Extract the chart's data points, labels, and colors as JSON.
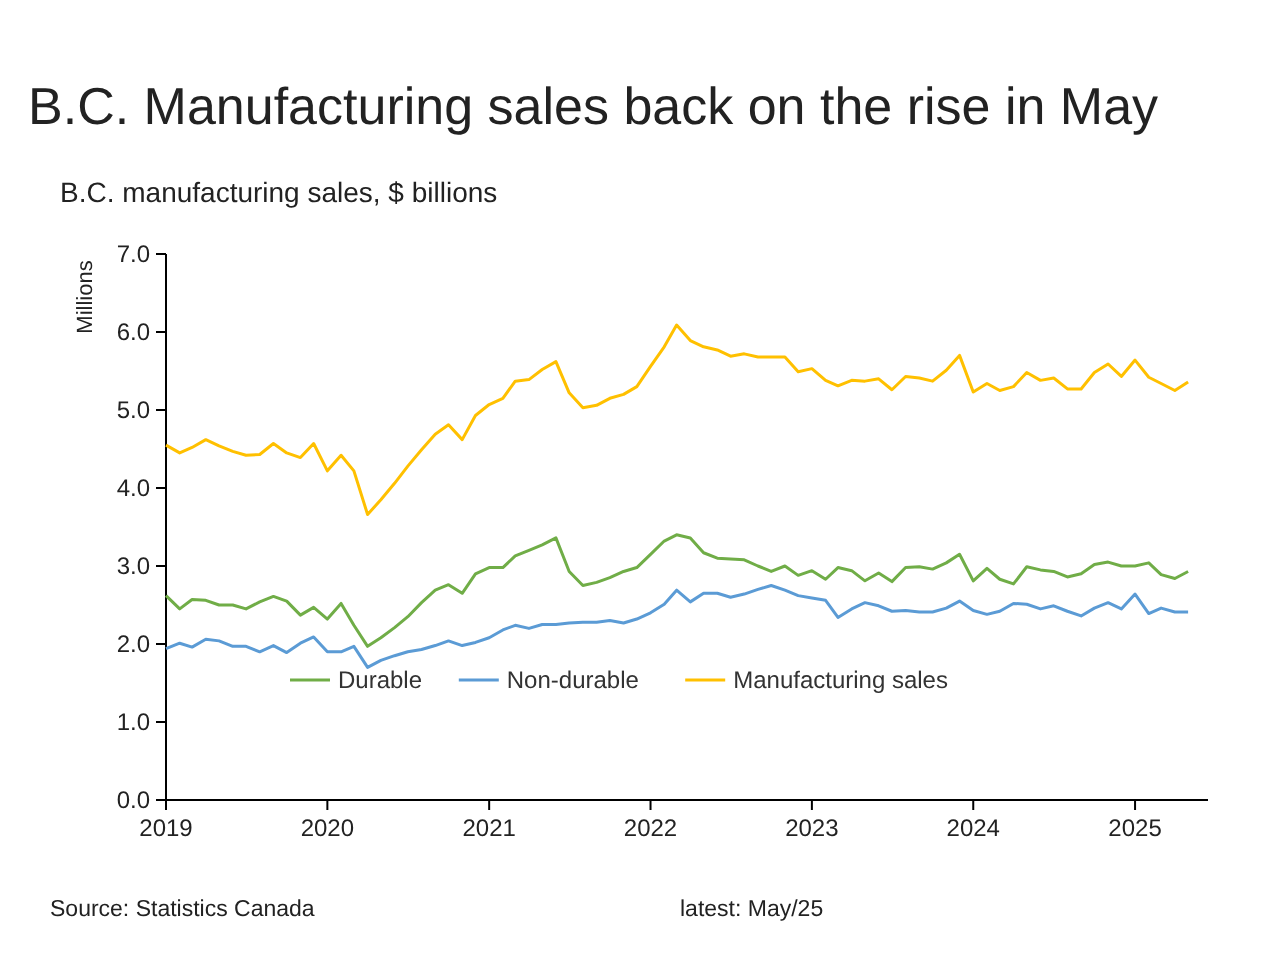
{
  "chart_data": {
    "type": "line",
    "title": "B.C. Manufacturing sales back on the rise in May",
    "subtitle": "B.C. manufacturing sales, $ billions",
    "ylabel": "Millions",
    "x": [
      "2019-01",
      "2019-02",
      "2019-03",
      "2019-04",
      "2019-05",
      "2019-06",
      "2019-07",
      "2019-08",
      "2019-09",
      "2019-10",
      "2019-11",
      "2019-12",
      "2020-01",
      "2020-02",
      "2020-03",
      "2020-04",
      "2020-05",
      "2020-06",
      "2020-07",
      "2020-08",
      "2020-09",
      "2020-10",
      "2020-11",
      "2020-12",
      "2021-01",
      "2021-02",
      "2021-03",
      "2021-04",
      "2021-05",
      "2021-06",
      "2021-07",
      "2021-08",
      "2021-09",
      "2021-10",
      "2021-11",
      "2021-12",
      "2022-01",
      "2022-02",
      "2022-03",
      "2022-04",
      "2022-05",
      "2022-06",
      "2022-07",
      "2022-08",
      "2022-09",
      "2022-10",
      "2022-11",
      "2022-12",
      "2023-01",
      "2023-02",
      "2023-03",
      "2023-04",
      "2023-05",
      "2023-06",
      "2023-07",
      "2023-08",
      "2023-09",
      "2023-10",
      "2023-11",
      "2023-12",
      "2024-01",
      "2024-02",
      "2024-03",
      "2024-04",
      "2024-05",
      "2024-06",
      "2024-07",
      "2024-08",
      "2024-09",
      "2024-10",
      "2024-11",
      "2024-12",
      "2025-01",
      "2025-02",
      "2025-03",
      "2025-04",
      "2025-05"
    ],
    "series": [
      {
        "name": "Durable",
        "color": "#70ad47",
        "values": [
          2.62,
          2.45,
          2.57,
          2.56,
          2.5,
          2.5,
          2.45,
          2.54,
          2.61,
          2.55,
          2.37,
          2.47,
          2.32,
          2.52,
          2.24,
          1.97,
          2.08,
          2.21,
          2.35,
          2.53,
          2.69,
          2.76,
          2.65,
          2.9,
          2.98,
          2.98,
          3.13,
          3.2,
          3.27,
          3.36,
          2.93,
          2.75,
          2.79,
          2.85,
          2.93,
          2.98,
          3.15,
          3.32,
          3.4,
          3.36,
          3.17,
          3.1,
          3.09,
          3.08,
          3.0,
          2.93,
          3.0,
          2.88,
          2.94,
          2.83,
          2.98,
          2.94,
          2.81,
          2.91,
          2.8,
          2.98,
          2.99,
          2.96,
          3.04,
          3.15,
          2.81,
          2.97,
          2.83,
          2.77,
          2.99,
          2.95,
          2.93,
          2.86,
          2.9,
          3.02,
          3.05,
          3.0,
          3.0,
          3.04,
          2.89,
          2.84,
          2.93
        ]
      },
      {
        "name": "Non-durable",
        "color": "#5b9bd5",
        "values": [
          1.94,
          2.01,
          1.96,
          2.06,
          2.04,
          1.97,
          1.97,
          1.9,
          1.98,
          1.89,
          2.01,
          2.09,
          1.9,
          1.9,
          1.97,
          1.7,
          1.79,
          1.85,
          1.9,
          1.93,
          1.98,
          2.04,
          1.98,
          2.02,
          2.08,
          2.18,
          2.24,
          2.2,
          2.25,
          2.25,
          2.27,
          2.28,
          2.28,
          2.3,
          2.27,
          2.32,
          2.4,
          2.51,
          2.69,
          2.54,
          2.65,
          2.65,
          2.6,
          2.64,
          2.7,
          2.75,
          2.69,
          2.62,
          2.59,
          2.56,
          2.34,
          2.45,
          2.53,
          2.49,
          2.42,
          2.43,
          2.41,
          2.41,
          2.46,
          2.55,
          2.43,
          2.38,
          2.42,
          2.52,
          2.51,
          2.45,
          2.49,
          2.42,
          2.36,
          2.46,
          2.53,
          2.45,
          2.64,
          2.39,
          2.46,
          2.41,
          2.41
        ]
      },
      {
        "name": "Manufacturing sales",
        "color": "#ffc000",
        "values": [
          4.55,
          4.45,
          4.52,
          4.62,
          4.54,
          4.47,
          4.42,
          4.43,
          4.57,
          4.45,
          4.39,
          4.57,
          4.22,
          4.42,
          4.22,
          3.66,
          3.85,
          4.06,
          4.28,
          4.49,
          4.69,
          4.81,
          4.62,
          4.93,
          5.07,
          5.15,
          5.37,
          5.39,
          5.52,
          5.62,
          5.22,
          5.03,
          5.06,
          5.15,
          5.2,
          5.3,
          5.56,
          5.81,
          6.09,
          5.89,
          5.81,
          5.77,
          5.69,
          5.72,
          5.68,
          5.68,
          5.68,
          5.49,
          5.53,
          5.38,
          5.31,
          5.38,
          5.37,
          5.4,
          5.26,
          5.43,
          5.41,
          5.37,
          5.51,
          5.7,
          5.23,
          5.34,
          5.25,
          5.3,
          5.48,
          5.38,
          5.41,
          5.27,
          5.27,
          5.48,
          5.59,
          5.43,
          5.64,
          5.42,
          5.34,
          5.25,
          5.36
        ]
      }
    ],
    "xlim": [
      "2019-01-01",
      "2025-06-15"
    ],
    "xticks": [
      "2019",
      "2020",
      "2021",
      "2022",
      "2023",
      "2024",
      "2025"
    ],
    "ylim": [
      0,
      7
    ],
    "yticks": [
      {
        "value": 0,
        "label": "0.0"
      },
      {
        "value": 1,
        "label": "1.0"
      },
      {
        "value": 2,
        "label": "2.0"
      },
      {
        "value": 3,
        "label": "3.0"
      },
      {
        "value": 4,
        "label": "4.0"
      },
      {
        "value": 5,
        "label": "5.0"
      },
      {
        "value": 6,
        "label": "6.0"
      },
      {
        "value": 7,
        "label": "7.0"
      }
    ],
    "legend": "bottom",
    "grid": false,
    "marker": "none",
    "line_style": "solid",
    "annotations": [
      "Source: Statistics Canada",
      "latest: May/25"
    ]
  }
}
